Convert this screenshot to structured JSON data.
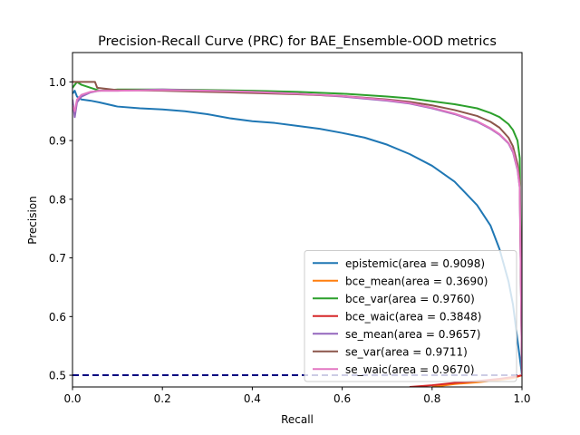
{
  "chart_data": {
    "type": "line",
    "title": "Precision-Recall Curve (PRC) for BAE_Ensemble-OOD metrics",
    "xlabel": "Recall",
    "ylabel": "Precision",
    "xlim": [
      0.0,
      1.0
    ],
    "ylim": [
      0.48,
      1.05
    ],
    "xticks": [
      "0.0",
      "0.2",
      "0.4",
      "0.6",
      "0.8",
      "1.0"
    ],
    "yticks": [
      "0.5",
      "0.6",
      "0.7",
      "0.8",
      "0.9",
      "1.0"
    ],
    "grid": false,
    "legend_position": "lower-right",
    "baseline": {
      "y": 0.5,
      "color": "#00007f",
      "style": "dashed"
    },
    "series": [
      {
        "name": "epistemic(area = 0.9098)",
        "color": "#1f77b4",
        "points": [
          [
            0.0,
            0.98
          ],
          [
            0.005,
            0.985
          ],
          [
            0.01,
            0.975
          ],
          [
            0.02,
            0.97
          ],
          [
            0.04,
            0.968
          ],
          [
            0.06,
            0.965
          ],
          [
            0.1,
            0.958
          ],
          [
            0.15,
            0.955
          ],
          [
            0.2,
            0.953
          ],
          [
            0.25,
            0.95
          ],
          [
            0.3,
            0.945
          ],
          [
            0.35,
            0.938
          ],
          [
            0.4,
            0.933
          ],
          [
            0.45,
            0.93
          ],
          [
            0.5,
            0.925
          ],
          [
            0.55,
            0.92
          ],
          [
            0.6,
            0.913
          ],
          [
            0.65,
            0.905
          ],
          [
            0.7,
            0.893
          ],
          [
            0.75,
            0.877
          ],
          [
            0.8,
            0.857
          ],
          [
            0.85,
            0.83
          ],
          [
            0.9,
            0.79
          ],
          [
            0.93,
            0.755
          ],
          [
            0.95,
            0.715
          ],
          [
            0.97,
            0.66
          ],
          [
            0.98,
            0.62
          ],
          [
            0.99,
            0.56
          ],
          [
            1.0,
            0.5
          ]
        ]
      },
      {
        "name": "bce_mean(area = 0.3690)",
        "color": "#ff7f0e",
        "points": [
          [
            0.8,
            0.48
          ],
          [
            0.85,
            0.485
          ],
          [
            0.9,
            0.488
          ],
          [
            0.95,
            0.492
          ],
          [
            0.98,
            0.495
          ],
          [
            1.0,
            0.5
          ]
        ]
      },
      {
        "name": "bce_var(area = 0.9760)",
        "color": "#2ca02c",
        "points": [
          [
            0.0,
            0.99
          ],
          [
            0.01,
            1.0
          ],
          [
            0.02,
            0.995
          ],
          [
            0.04,
            0.99
          ],
          [
            0.06,
            0.985
          ],
          [
            0.1,
            0.987
          ],
          [
            0.2,
            0.987
          ],
          [
            0.3,
            0.986
          ],
          [
            0.4,
            0.985
          ],
          [
            0.5,
            0.983
          ],
          [
            0.6,
            0.98
          ],
          [
            0.7,
            0.975
          ],
          [
            0.75,
            0.972
          ],
          [
            0.8,
            0.967
          ],
          [
            0.85,
            0.962
          ],
          [
            0.9,
            0.955
          ],
          [
            0.93,
            0.947
          ],
          [
            0.95,
            0.94
          ],
          [
            0.97,
            0.928
          ],
          [
            0.98,
            0.918
          ],
          [
            0.99,
            0.9
          ],
          [
            0.995,
            0.87
          ],
          [
            1.0,
            0.5
          ]
        ]
      },
      {
        "name": "bce_waic(area = 0.3848)",
        "color": "#d62728",
        "points": [
          [
            0.75,
            0.48
          ],
          [
            0.8,
            0.483
          ],
          [
            0.85,
            0.487
          ],
          [
            0.9,
            0.49
          ],
          [
            0.95,
            0.494
          ],
          [
            0.98,
            0.497
          ],
          [
            1.0,
            0.5
          ]
        ]
      },
      {
        "name": "se_mean(area = 0.9657)",
        "color": "#9467bd",
        "points": [
          [
            0.0,
            0.97
          ],
          [
            0.005,
            0.94
          ],
          [
            0.01,
            0.965
          ],
          [
            0.02,
            0.975
          ],
          [
            0.04,
            0.982
          ],
          [
            0.06,
            0.985
          ],
          [
            0.1,
            0.985
          ],
          [
            0.2,
            0.987
          ],
          [
            0.3,
            0.985
          ],
          [
            0.4,
            0.983
          ],
          [
            0.5,
            0.98
          ],
          [
            0.6,
            0.975
          ],
          [
            0.7,
            0.968
          ],
          [
            0.75,
            0.963
          ],
          [
            0.8,
            0.955
          ],
          [
            0.85,
            0.945
          ],
          [
            0.9,
            0.932
          ],
          [
            0.93,
            0.92
          ],
          [
            0.95,
            0.91
          ],
          [
            0.97,
            0.895
          ],
          [
            0.98,
            0.88
          ],
          [
            0.99,
            0.85
          ],
          [
            0.995,
            0.82
          ],
          [
            1.0,
            0.5
          ]
        ]
      },
      {
        "name": "se_var(area = 0.9711)",
        "color": "#8c564b",
        "points": [
          [
            0.0,
            1.0
          ],
          [
            0.05,
            1.0
          ],
          [
            0.055,
            0.99
          ],
          [
            0.1,
            0.986
          ],
          [
            0.2,
            0.985
          ],
          [
            0.3,
            0.983
          ],
          [
            0.4,
            0.981
          ],
          [
            0.5,
            0.979
          ],
          [
            0.6,
            0.976
          ],
          [
            0.7,
            0.97
          ],
          [
            0.75,
            0.966
          ],
          [
            0.8,
            0.96
          ],
          [
            0.85,
            0.952
          ],
          [
            0.9,
            0.942
          ],
          [
            0.93,
            0.932
          ],
          [
            0.95,
            0.922
          ],
          [
            0.97,
            0.905
          ],
          [
            0.98,
            0.89
          ],
          [
            0.99,
            0.86
          ],
          [
            0.995,
            0.83
          ],
          [
            1.0,
            0.5
          ]
        ]
      },
      {
        "name": "se_waic(area = 0.9670)",
        "color": "#e377c2",
        "points": [
          [
            0.0,
            0.96
          ],
          [
            0.005,
            0.95
          ],
          [
            0.01,
            0.97
          ],
          [
            0.02,
            0.978
          ],
          [
            0.04,
            0.983
          ],
          [
            0.06,
            0.985
          ],
          [
            0.1,
            0.985
          ],
          [
            0.2,
            0.986
          ],
          [
            0.3,
            0.985
          ],
          [
            0.4,
            0.983
          ],
          [
            0.5,
            0.98
          ],
          [
            0.6,
            0.976
          ],
          [
            0.7,
            0.969
          ],
          [
            0.75,
            0.964
          ],
          [
            0.8,
            0.956
          ],
          [
            0.85,
            0.946
          ],
          [
            0.9,
            0.933
          ],
          [
            0.93,
            0.921
          ],
          [
            0.95,
            0.911
          ],
          [
            0.97,
            0.896
          ],
          [
            0.98,
            0.882
          ],
          [
            0.99,
            0.852
          ],
          [
            0.995,
            0.82
          ],
          [
            1.0,
            0.5
          ]
        ]
      }
    ]
  }
}
